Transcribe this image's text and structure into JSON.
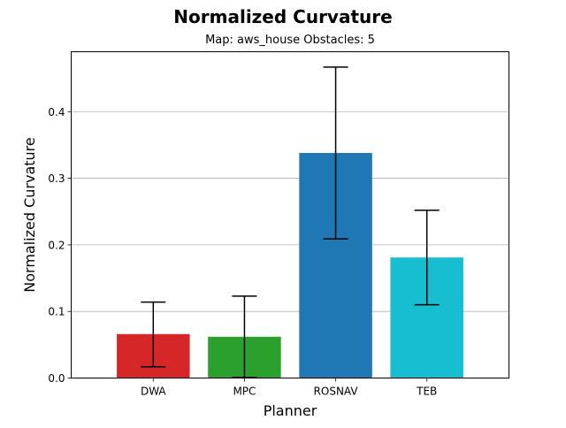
{
  "chart_data": {
    "type": "bar",
    "title": "Normalized Curvature",
    "subtitle": "Map: aws_house Obstacles: 5",
    "xlabel": "Planner",
    "ylabel": "Normalized Curvature",
    "categories": [
      "DWA",
      "MPC",
      "ROSNAV",
      "TEB"
    ],
    "values": [
      0.066,
      0.062,
      0.338,
      0.181
    ],
    "error_low": [
      0.017,
      0.001,
      0.209,
      0.11
    ],
    "error_high": [
      0.114,
      0.123,
      0.467,
      0.252
    ],
    "colors": [
      "#d62728",
      "#2ca02c",
      "#1f77b4",
      "#17becf"
    ],
    "ylim": [
      0,
      0.49
    ],
    "yticks": [
      "0.0",
      "0.1",
      "0.2",
      "0.3",
      "0.4"
    ],
    "grid": "horizontal"
  }
}
